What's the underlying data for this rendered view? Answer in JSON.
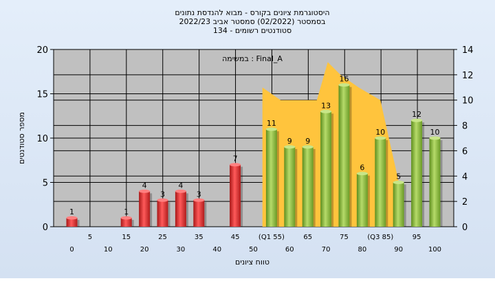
{
  "chart_data": {
    "type": "bar",
    "title_lines": [
      "היסטוגרמת ציונים בקורס - מבוא להנדסת נתונים",
      "בסמסטר  (02/2022)  סמסטר אביב 2022/23",
      "סטודנטים רשומים - 134"
    ],
    "xlabel": "טווח ציונים",
    "ylabel": "מספר סטודנטים",
    "legend_label": "במשימה : Final_A",
    "ylim_left": [
      0,
      20
    ],
    "yticks_left": [
      "0",
      "5",
      "10",
      "15",
      "20"
    ],
    "ylim_right": [
      0,
      14
    ],
    "yticks_right": [
      "0",
      "2",
      "4",
      "6",
      "8",
      "10",
      "12",
      "14"
    ],
    "x_tick_labels_upper": [
      "5",
      "15",
      "25",
      "35",
      "45",
      "(Q1 55)",
      "65",
      "75",
      "(Q3 85)",
      "95"
    ],
    "x_tick_labels_lower": [
      "0",
      "10",
      "20",
      "30",
      "40",
      "50",
      "60",
      "70",
      "80",
      "90",
      "100"
    ],
    "bars": [
      {
        "x": 0,
        "value": 1,
        "label": "1",
        "series": "red"
      },
      {
        "x": 15,
        "value": 1,
        "label": "1",
        "series": "red"
      },
      {
        "x": 20,
        "value": 4,
        "label": "4",
        "series": "red"
      },
      {
        "x": 25,
        "value": 3,
        "label": "3",
        "series": "red"
      },
      {
        "x": 30,
        "value": 4,
        "label": "4",
        "series": "red"
      },
      {
        "x": 35,
        "value": 3,
        "label": "3",
        "series": "red"
      },
      {
        "x": 45,
        "value": 7,
        "label": "7",
        "series": "red"
      },
      {
        "x": 55,
        "value": 11,
        "label": "11",
        "series": "green"
      },
      {
        "x": 60,
        "value": 9,
        "label": "9",
        "series": "green"
      },
      {
        "x": 65,
        "value": 9,
        "label": "9",
        "series": "green"
      },
      {
        "x": 70,
        "value": 13,
        "label": "13",
        "series": "green"
      },
      {
        "x": 75,
        "value": 16,
        "label": "16",
        "series": "green"
      },
      {
        "x": 80,
        "value": 6,
        "label": "6",
        "series": "green"
      },
      {
        "x": 85,
        "value": 10,
        "label": "10",
        "series": "green"
      },
      {
        "x": 90,
        "value": 5,
        "label": "5",
        "series": "green"
      },
      {
        "x": 95,
        "value": 12,
        "label": "12",
        "series": "green"
      },
      {
        "x": 100,
        "value": 10,
        "label": "10",
        "series": "green"
      }
    ],
    "area_series": {
      "axis": "right",
      "points": [
        [
          52.5,
          0
        ],
        [
          52.5,
          11
        ],
        [
          57.5,
          10
        ],
        [
          62.5,
          10
        ],
        [
          67.5,
          10
        ],
        [
          70.5,
          13
        ],
        [
          74,
          12
        ],
        [
          79,
          11
        ],
        [
          85,
          10
        ],
        [
          90,
          3.6
        ],
        [
          90,
          0
        ]
      ]
    },
    "colors": {
      "background": "#e4eefa",
      "plot": "#c0c0c0",
      "red_bar": "#e03030",
      "green_bar": "#8fbf3a",
      "area": "#ffc43d"
    }
  }
}
